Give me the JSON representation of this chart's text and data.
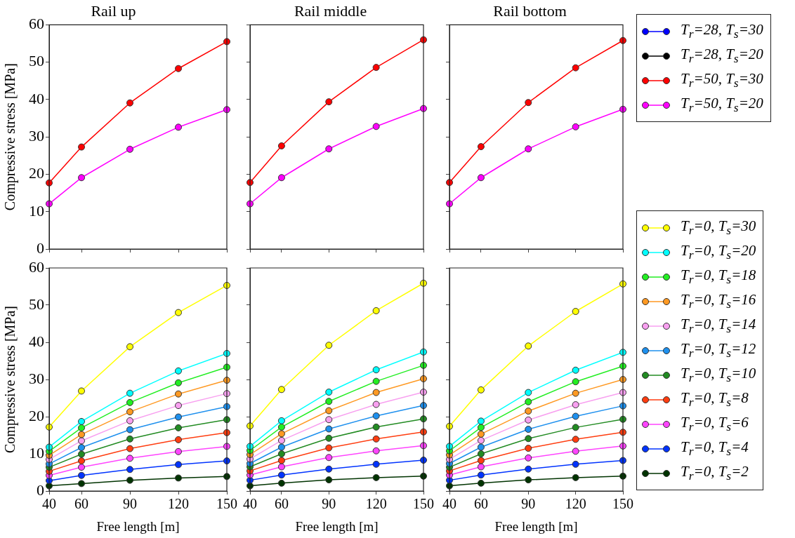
{
  "chart_data": [
    {
      "type": "line",
      "title": "Rail up",
      "ylabel": "Compressive stress [MPa]",
      "x": [
        40,
        60,
        90,
        120,
        150
      ],
      "xlim": [
        40,
        150
      ],
      "xticks": [
        40,
        60,
        90,
        120,
        150
      ],
      "ylim": [
        0,
        60
      ],
      "yticks": [
        0,
        10,
        20,
        30,
        40,
        50,
        60
      ],
      "tick_labels": "y",
      "grid": false,
      "legend": false,
      "marker": "circle",
      "line_style": "solid",
      "series": [
        {
          "color": "#ff0000",
          "values": [
            17.7,
            27.3,
            39.1,
            48.3,
            55.5
          ]
        },
        {
          "color": "#ff00ff",
          "values": [
            12.1,
            19.1,
            26.7,
            32.6,
            37.3
          ]
        }
      ]
    },
    {
      "type": "line",
      "title": "Rail middle",
      "x": [
        40,
        60,
        90,
        120,
        150
      ],
      "xlim": [
        40,
        150
      ],
      "xticks": [
        40,
        60,
        90,
        120,
        150
      ],
      "ylim": [
        0,
        60
      ],
      "yticks": [
        0,
        10,
        20,
        30,
        40,
        50,
        60
      ],
      "tick_labels": false,
      "grid": false,
      "legend": false,
      "marker": "circle",
      "line_style": "solid",
      "series": [
        {
          "color": "#ff0000",
          "values": [
            17.8,
            27.6,
            39.4,
            48.6,
            56.0
          ]
        },
        {
          "color": "#ff00ff",
          "values": [
            12.1,
            19.1,
            26.8,
            32.8,
            37.6
          ]
        }
      ]
    },
    {
      "type": "line",
      "title": "Rail bottom",
      "x": [
        40,
        60,
        90,
        120,
        150
      ],
      "xlim": [
        40,
        150
      ],
      "xticks": [
        40,
        60,
        90,
        120,
        150
      ],
      "ylim": [
        0,
        60
      ],
      "yticks": [
        0,
        10,
        20,
        30,
        40,
        50,
        60
      ],
      "tick_labels": false,
      "grid": false,
      "legend": "right",
      "marker": "circle",
      "line_style": "solid",
      "series": [
        {
          "name": "T$_{r}$=28, T$_{s}$=30",
          "color": "#0000ff",
          "values": [
            null,
            null,
            null,
            null,
            null
          ]
        },
        {
          "name": "T$_{r}$=28, T$_{s}$=20",
          "color": "#000000",
          "values": [
            null,
            null,
            null,
            null,
            null
          ]
        },
        {
          "name": "T$_{r}$=50, T$_{s}$=30",
          "color": "#ff0000",
          "values": [
            17.8,
            27.4,
            39.2,
            48.5,
            55.8
          ]
        },
        {
          "name": "T$_{r}$=50, T$_{s}$=20",
          "color": "#ff00ff",
          "values": [
            12.1,
            19.1,
            26.8,
            32.7,
            37.4
          ]
        }
      ]
    },
    {
      "type": "line",
      "xlabel": "Free length [m]",
      "ylabel": "Compressive stress [MPa]",
      "x": [
        40,
        60,
        90,
        120,
        150
      ],
      "xlim": [
        40,
        150
      ],
      "xticks": [
        40,
        60,
        90,
        120,
        150
      ],
      "ylim": [
        0,
        60
      ],
      "yticks": [
        0,
        10,
        20,
        30,
        40,
        50,
        60
      ],
      "grid": false,
      "legend": false,
      "marker": "circle",
      "line_style": "solid",
      "series": [
        {
          "color": "#ffff00",
          "values": [
            17.2,
            26.9,
            38.8,
            48.0,
            55.3
          ]
        },
        {
          "color": "#00ffff",
          "values": [
            11.8,
            18.7,
            26.3,
            32.3,
            37.0
          ]
        },
        {
          "color": "#22ee22",
          "values": [
            10.7,
            17.0,
            23.8,
            29.1,
            33.3
          ]
        },
        {
          "color": "#ff9922",
          "values": [
            9.6,
            15.2,
            21.3,
            26.1,
            29.8
          ]
        },
        {
          "color": "#f8a0f0",
          "values": [
            8.5,
            13.5,
            18.9,
            23.0,
            26.2
          ]
        },
        {
          "color": "#1e90ee",
          "values": [
            7.3,
            11.7,
            16.5,
            19.9,
            22.7
          ]
        },
        {
          "color": "#228b22",
          "values": [
            6.4,
            9.9,
            14.0,
            17.0,
            19.2
          ]
        },
        {
          "color": "#ff3d10",
          "values": [
            5.3,
            8.1,
            11.4,
            13.8,
            15.7
          ]
        },
        {
          "color": "#ff44ff",
          "values": [
            4.2,
            6.4,
            8.8,
            10.6,
            12.0
          ]
        },
        {
          "color": "#0033ff",
          "values": [
            2.8,
            4.2,
            5.8,
            7.1,
            8.1
          ]
        },
        {
          "color": "#003300",
          "values": [
            1.4,
            2.0,
            2.9,
            3.5,
            3.9
          ]
        }
      ]
    },
    {
      "type": "line",
      "xlabel": "Free length [m]",
      "x": [
        40,
        60,
        90,
        120,
        150
      ],
      "xlim": [
        40,
        150
      ],
      "xticks": [
        40,
        60,
        90,
        120,
        150
      ],
      "ylim": [
        0,
        60
      ],
      "yticks": [
        0,
        10,
        20,
        30,
        40,
        50,
        60
      ],
      "tick_labels": "x",
      "grid": false,
      "legend": false,
      "marker": "circle",
      "line_style": "solid",
      "series": [
        {
          "color": "#ffff00",
          "values": [
            17.5,
            27.3,
            39.2,
            48.5,
            55.9
          ]
        },
        {
          "color": "#00ffff",
          "values": [
            12.0,
            18.9,
            26.6,
            32.6,
            37.4
          ]
        },
        {
          "color": "#22ee22",
          "values": [
            10.9,
            17.2,
            24.1,
            29.5,
            33.8
          ]
        },
        {
          "color": "#ff9922",
          "values": [
            9.8,
            15.4,
            21.6,
            26.5,
            30.2
          ]
        },
        {
          "color": "#f8a0f0",
          "values": [
            8.6,
            13.6,
            19.2,
            23.3,
            26.6
          ]
        },
        {
          "color": "#1e90ee",
          "values": [
            7.4,
            11.8,
            16.7,
            20.2,
            23.0
          ]
        },
        {
          "color": "#228b22",
          "values": [
            6.5,
            10.0,
            14.2,
            17.2,
            19.4
          ]
        },
        {
          "color": "#ff3d10",
          "values": [
            5.4,
            8.2,
            11.6,
            14.0,
            15.9
          ]
        },
        {
          "color": "#ff44ff",
          "values": [
            4.3,
            6.5,
            9.0,
            10.8,
            12.2
          ]
        },
        {
          "color": "#0033ff",
          "values": [
            2.9,
            4.3,
            5.9,
            7.2,
            8.3
          ]
        },
        {
          "color": "#003300",
          "values": [
            1.4,
            2.1,
            3.0,
            3.6,
            4.0
          ]
        }
      ]
    },
    {
      "type": "line",
      "xlabel": "Free length [m]",
      "x": [
        40,
        60,
        90,
        120,
        150
      ],
      "xlim": [
        40,
        150
      ],
      "xticks": [
        40,
        60,
        90,
        120,
        150
      ],
      "ylim": [
        0,
        60
      ],
      "yticks": [
        0,
        10,
        20,
        30,
        40,
        50,
        60
      ],
      "tick_labels": "x",
      "grid": false,
      "legend": "right",
      "marker": "circle",
      "line_style": "solid",
      "series": [
        {
          "name": "T$_{r}$=0, T$_{s}$=30",
          "color": "#ffff00",
          "values": [
            17.4,
            27.2,
            39.0,
            48.3,
            55.7
          ]
        },
        {
          "name": "T$_{r}$=0, T$_{s}$=20",
          "color": "#00ffff",
          "values": [
            12.0,
            18.8,
            26.5,
            32.5,
            37.3
          ]
        },
        {
          "name": "T$_{r}$=0, T$_{s}$=18",
          "color": "#22ee22",
          "values": [
            10.8,
            17.1,
            24.0,
            29.4,
            33.6
          ]
        },
        {
          "name": "T$_{r}$=0, T$_{s}$=16",
          "color": "#ff9922",
          "values": [
            9.7,
            15.3,
            21.5,
            26.3,
            30.0
          ]
        },
        {
          "name": "T$_{r}$=0, T$_{s}$=14",
          "color": "#f8a0f0",
          "values": [
            8.5,
            13.6,
            19.1,
            23.2,
            26.5
          ]
        },
        {
          "name": "T$_{r}$=0, T$_{s}$=12",
          "color": "#1e90ee",
          "values": [
            7.4,
            11.8,
            16.6,
            20.1,
            22.9
          ]
        },
        {
          "name": "T$_{r}$=0, T$_{s}$=10",
          "color": "#228b22",
          "values": [
            6.4,
            10.0,
            14.1,
            17.1,
            19.3
          ]
        },
        {
          "name": "T$_{r}$=0, T$_{s}$=8",
          "color": "#ff3d10",
          "values": [
            5.4,
            8.2,
            11.5,
            13.9,
            15.8
          ]
        },
        {
          "name": "T$_{r}$=0, T$_{s}$=6",
          "color": "#ff44ff",
          "values": [
            4.3,
            6.5,
            8.9,
            10.7,
            12.1
          ]
        },
        {
          "name": "T$_{r}$=0, T$_{s}$=4",
          "color": "#0033ff",
          "values": [
            2.9,
            4.3,
            5.9,
            7.2,
            8.2
          ]
        },
        {
          "name": "T$_{r}$=0, T$_{s}$=2",
          "color": "#003300",
          "values": [
            1.4,
            2.1,
            3.0,
            3.6,
            4.0
          ]
        }
      ]
    }
  ]
}
